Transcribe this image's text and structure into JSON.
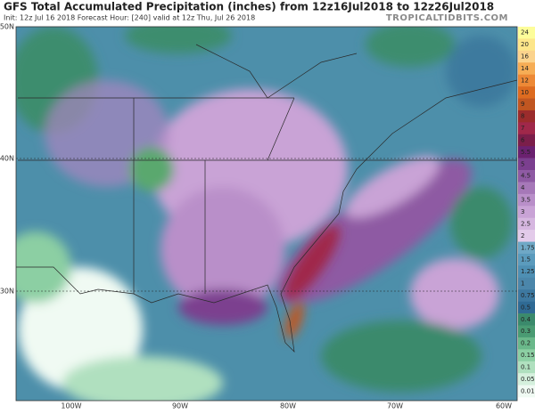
{
  "header": {
    "title": "GFS Total Accumulated Precipitation (inches) from 12z16Jul2018 to 12z26Jul2018",
    "info": "Init: 12z Jul 16 2018   Forecast Hour: [240]   valid at 12z Thu, Jul 26 2018",
    "watermark": "TROPICALTIDBITS.COM"
  },
  "map": {
    "lat_labels": [
      "50N",
      "40N",
      "30N"
    ],
    "lon_labels": [
      "100W",
      "90W",
      "80W",
      "70W",
      "60W"
    ]
  },
  "colorbar": {
    "labels": [
      "24",
      "20",
      "16",
      "14",
      "12",
      "10",
      "9",
      "8",
      "7",
      "6",
      "5.5",
      "5",
      "4.5",
      "4",
      "3.5",
      "3",
      "2.5",
      "2",
      "1.75",
      "1.5",
      "1.25",
      "1",
      "0.75",
      "0.5",
      "0.4",
      "0.3",
      "0.2",
      "0.15",
      "0.1",
      "0.05",
      "0.01"
    ],
    "colors": [
      "#fdfd9a",
      "#fde68a",
      "#fbd38d",
      "#f6ad55",
      "#ed8936",
      "#dd6b20",
      "#c05621",
      "#9b2c2c",
      "#a0284a",
      "#7b1e4a",
      "#6b2170",
      "#7b3f8f",
      "#8e5aa3",
      "#a678b8",
      "#b98fc9",
      "#c9a3d6",
      "#d6b7e0",
      "#e3cbea",
      "#6fa8c6",
      "#5b9bbd",
      "#4e8fb3",
      "#4b86aa",
      "#3d78a0",
      "#2f6a94",
      "#3b8a6c",
      "#4a9b73",
      "#6ab88a",
      "#8ccfa3",
      "#b0e0bf",
      "#d5f0dd",
      "#f0faf3"
    ]
  }
}
